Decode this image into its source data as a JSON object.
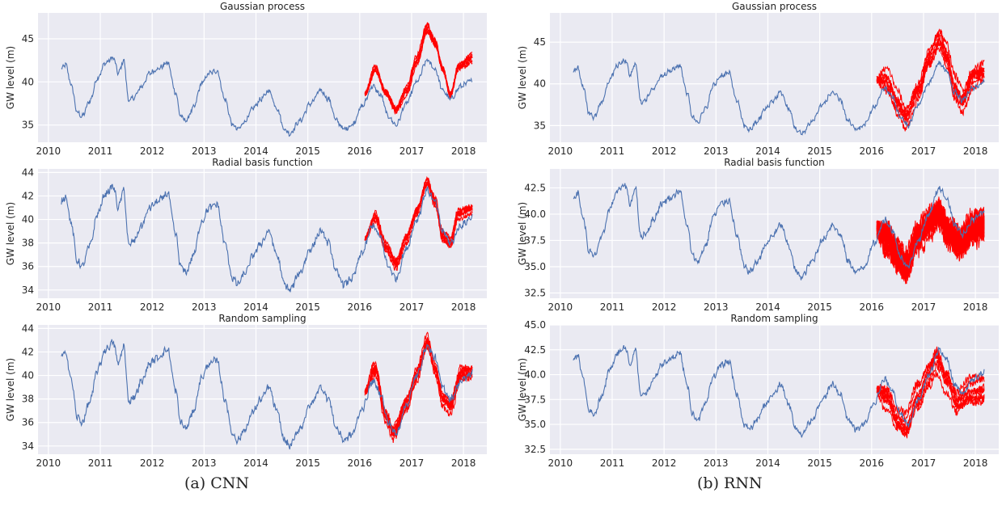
{
  "captions": {
    "left": "(a) CNN",
    "right": "(b) RNN"
  },
  "colors": {
    "observed": "#4c72b0",
    "predicted": "#ff0000",
    "panel_bg": "#eaeaf2",
    "grid": "#ffffff"
  },
  "chart_data": [
    {
      "type": "line",
      "group": "(a) CNN",
      "title": "Gaussian process",
      "xlabel": "",
      "ylabel": "GW level (m)",
      "xlim": [
        2009.8,
        2018.45
      ],
      "ylim": [
        33,
        48
      ],
      "xticks": [
        2010,
        2011,
        2012,
        2013,
        2014,
        2015,
        2016,
        2017,
        2018
      ],
      "yticks": [
        35,
        40,
        45
      ],
      "ytick_labels": [
        "35",
        "40",
        "45"
      ],
      "grid": true,
      "noise": 0.25,
      "series": [
        {
          "role": "observed",
          "x_start": 2010.25,
          "x_end": 2018.17,
          "points": 12
        },
        {
          "role": "predicted",
          "count": 7,
          "x_start": 2016.1,
          "x_end": 2018.17,
          "spread": 0.6,
          "anchors": [
            [
              2016.1,
              38.6
            ],
            [
              2016.3,
              41.5
            ],
            [
              2016.5,
              38.8
            ],
            [
              2016.7,
              36.8
            ],
            [
              2016.9,
              39
            ],
            [
              2017.1,
              42.5
            ],
            [
              2017.3,
              46.2
            ],
            [
              2017.45,
              44.5
            ],
            [
              2017.6,
              41.5
            ],
            [
              2017.75,
              38.5
            ],
            [
              2017.9,
              41.8
            ],
            [
              2018.17,
              42.8
            ]
          ]
        }
      ]
    },
    {
      "type": "line",
      "group": "(a) CNN",
      "title": "Radial basis function",
      "xlabel": "",
      "ylabel": "GW level (m)",
      "xlim": [
        2009.8,
        2018.45
      ],
      "ylim": [
        33.3,
        44.3
      ],
      "xticks": [
        2010,
        2011,
        2012,
        2013,
        2014,
        2015,
        2016,
        2017,
        2018
      ],
      "yticks": [
        34,
        36,
        38,
        40,
        42,
        44
      ],
      "ytick_labels": [
        "34",
        "36",
        "38",
        "40",
        "42",
        "44"
      ],
      "grid": true,
      "noise": 0.22,
      "series": [
        {
          "role": "observed",
          "x_start": 2010.25,
          "x_end": 2018.17
        },
        {
          "role": "predicted",
          "count": 7,
          "x_start": 2016.1,
          "x_end": 2018.17,
          "spread": 0.5,
          "anchors": [
            [
              2016.1,
              38.4
            ],
            [
              2016.3,
              40.2
            ],
            [
              2016.5,
              37.6
            ],
            [
              2016.7,
              36.2
            ],
            [
              2016.9,
              38.5
            ],
            [
              2017.1,
              40.8
            ],
            [
              2017.3,
              43.2
            ],
            [
              2017.45,
              41.5
            ],
            [
              2017.6,
              38.5
            ],
            [
              2017.75,
              38
            ],
            [
              2017.9,
              40.5
            ],
            [
              2018.17,
              41
            ]
          ]
        }
      ]
    },
    {
      "type": "line",
      "group": "(a) CNN",
      "title": "Random sampling",
      "xlabel": "",
      "ylabel": "GW level (m)",
      "xlim": [
        2009.8,
        2018.45
      ],
      "ylim": [
        33.3,
        44.3
      ],
      "xticks": [
        2010,
        2011,
        2012,
        2013,
        2014,
        2015,
        2016,
        2017,
        2018
      ],
      "yticks": [
        34,
        36,
        38,
        40,
        42,
        44
      ],
      "ytick_labels": [
        "34",
        "36",
        "38",
        "40",
        "42",
        "44"
      ],
      "grid": true,
      "noise": 0.3,
      "series": [
        {
          "role": "observed",
          "x_start": 2010.25,
          "x_end": 2018.17
        },
        {
          "role": "predicted",
          "count": 8,
          "x_start": 2016.1,
          "x_end": 2018.17,
          "spread": 0.7,
          "anchors": [
            [
              2016.1,
              38.6
            ],
            [
              2016.3,
              40.6
            ],
            [
              2016.5,
              36.6
            ],
            [
              2016.65,
              35.2
            ],
            [
              2016.9,
              37.6
            ],
            [
              2017.1,
              40
            ],
            [
              2017.3,
              42.8
            ],
            [
              2017.45,
              40.6
            ],
            [
              2017.6,
              38
            ],
            [
              2017.75,
              37.4
            ],
            [
              2017.95,
              40.2
            ],
            [
              2018.17,
              40.3
            ]
          ]
        }
      ]
    },
    {
      "type": "line",
      "group": "(b) RNN",
      "title": "Gaussian process",
      "xlabel": "",
      "ylabel": "GW level (m)",
      "xlim": [
        2009.8,
        2018.45
      ],
      "ylim": [
        33,
        48.5
      ],
      "xticks": [
        2010,
        2011,
        2012,
        2013,
        2014,
        2015,
        2016,
        2017,
        2018
      ],
      "yticks": [
        35,
        40,
        45
      ],
      "ytick_labels": [
        "35",
        "40",
        "45"
      ],
      "grid": true,
      "noise": 0.45,
      "series": [
        {
          "role": "observed",
          "x_start": 2010.25,
          "x_end": 2018.17
        },
        {
          "role": "predicted",
          "count": 8,
          "x_start": 2016.1,
          "x_end": 2018.17,
          "spread": 1.6,
          "anchors": [
            [
              2016.1,
              40.5
            ],
            [
              2016.3,
              40.2
            ],
            [
              2016.5,
              37.8
            ],
            [
              2016.65,
              36.2
            ],
            [
              2016.9,
              39.2
            ],
            [
              2017.1,
              42.8
            ],
            [
              2017.3,
              45.2
            ],
            [
              2017.45,
              43.2
            ],
            [
              2017.6,
              39.5
            ],
            [
              2017.75,
              38.2
            ],
            [
              2017.95,
              41
            ],
            [
              2018.17,
              41.4
            ]
          ]
        }
      ]
    },
    {
      "type": "line",
      "group": "(b) RNN",
      "title": "Radial basis function",
      "xlabel": "",
      "ylabel": "GW level (m)",
      "xlim": [
        2009.8,
        2018.45
      ],
      "ylim": [
        32,
        44.3
      ],
      "xticks": [
        2010,
        2011,
        2012,
        2013,
        2014,
        2015,
        2016,
        2017,
        2018
      ],
      "yticks": [
        32.5,
        35.0,
        37.5,
        40.0,
        42.5
      ],
      "ytick_labels": [
        "32.5",
        "35.0",
        "37.5",
        "40.0",
        "42.5"
      ],
      "grid": true,
      "noise": 0.9,
      "series": [
        {
          "role": "observed",
          "x_start": 2010.25,
          "x_end": 2018.17
        },
        {
          "role": "predicted",
          "count": 16,
          "x_start": 2016.1,
          "x_end": 2018.17,
          "spread": 1.4,
          "anchors": [
            [
              2016.1,
              38.5
            ],
            [
              2016.3,
              37.8
            ],
            [
              2016.5,
              35.8
            ],
            [
              2016.65,
              34.8
            ],
            [
              2016.9,
              37.8
            ],
            [
              2017.1,
              39.2
            ],
            [
              2017.3,
              40.2
            ],
            [
              2017.5,
              38.2
            ],
            [
              2017.7,
              37.2
            ],
            [
              2017.95,
              38.5
            ],
            [
              2018.17,
              38.8
            ]
          ]
        }
      ]
    },
    {
      "type": "line",
      "group": "(b) RNN",
      "title": "Random sampling",
      "xlabel": "",
      "ylabel": "GW level (m)",
      "xlim": [
        2009.8,
        2018.45
      ],
      "ylim": [
        32,
        45
      ],
      "xticks": [
        2010,
        2011,
        2012,
        2013,
        2014,
        2015,
        2016,
        2017,
        2018
      ],
      "yticks": [
        32.5,
        35.0,
        37.5,
        40.0,
        42.5,
        45.0
      ],
      "ytick_labels": [
        "32.5",
        "35.0",
        "37.5",
        "40.0",
        "42.5",
        "45.0"
      ],
      "grid": true,
      "noise": 0.4,
      "series": [
        {
          "role": "observed",
          "x_start": 2010.25,
          "x_end": 2018.17
        },
        {
          "role": "predicted",
          "count": 8,
          "x_start": 2016.1,
          "x_end": 2018.17,
          "spread": 1.7,
          "anchors": [
            [
              2016.1,
              38.5
            ],
            [
              2016.3,
              37.8
            ],
            [
              2016.5,
              35.2
            ],
            [
              2016.65,
              34.5
            ],
            [
              2016.9,
              37.8
            ],
            [
              2017.1,
              40.2
            ],
            [
              2017.25,
              41.8
            ],
            [
              2017.45,
              39.5
            ],
            [
              2017.65,
              37
            ],
            [
              2017.9,
              38
            ],
            [
              2018.17,
              38.5
            ]
          ]
        }
      ]
    }
  ],
  "observed_anchors": [
    [
      2010.25,
      41.5
    ],
    [
      2010.33,
      42.0
    ],
    [
      2010.45,
      39.5
    ],
    [
      2010.55,
      36.5
    ],
    [
      2010.65,
      36.0
    ],
    [
      2010.8,
      37.8
    ],
    [
      2010.95,
      40.5
    ],
    [
      2011.1,
      42.2
    ],
    [
      2011.25,
      42.8
    ],
    [
      2011.35,
      41.0
    ],
    [
      2011.45,
      42.5
    ],
    [
      2011.55,
      37.8
    ],
    [
      2011.65,
      38.2
    ],
    [
      2011.8,
      39.5
    ],
    [
      2011.95,
      41.0
    ],
    [
      2012.1,
      41.5
    ],
    [
      2012.3,
      42.2
    ],
    [
      2012.45,
      38.8
    ],
    [
      2012.55,
      36.0
    ],
    [
      2012.65,
      35.5
    ],
    [
      2012.8,
      37.0
    ],
    [
      2012.95,
      39.8
    ],
    [
      2013.1,
      41.0
    ],
    [
      2013.25,
      41.3
    ],
    [
      2013.4,
      38.0
    ],
    [
      2013.55,
      35.0
    ],
    [
      2013.65,
      34.5
    ],
    [
      2013.8,
      35.5
    ],
    [
      2013.95,
      37.0
    ],
    [
      2014.1,
      38.0
    ],
    [
      2014.25,
      39.0
    ],
    [
      2014.4,
      37.0
    ],
    [
      2014.55,
      34.5
    ],
    [
      2014.65,
      34.0
    ],
    [
      2014.85,
      35.5
    ],
    [
      2015.05,
      37.5
    ],
    [
      2015.25,
      39.0
    ],
    [
      2015.4,
      38.0
    ],
    [
      2015.55,
      35.5
    ],
    [
      2015.7,
      34.5
    ],
    [
      2015.85,
      35.0
    ],
    [
      2016.05,
      37.2
    ],
    [
      2016.25,
      39.5
    ],
    [
      2016.4,
      38.5
    ],
    [
      2016.55,
      36.0
    ],
    [
      2016.7,
      35.0
    ],
    [
      2016.9,
      37.5
    ],
    [
      2017.1,
      40.0
    ],
    [
      2017.3,
      42.5
    ],
    [
      2017.45,
      41.5
    ],
    [
      2017.6,
      39.0
    ],
    [
      2017.75,
      38.0
    ],
    [
      2017.95,
      39.5
    ],
    [
      2018.17,
      40.2
    ]
  ]
}
